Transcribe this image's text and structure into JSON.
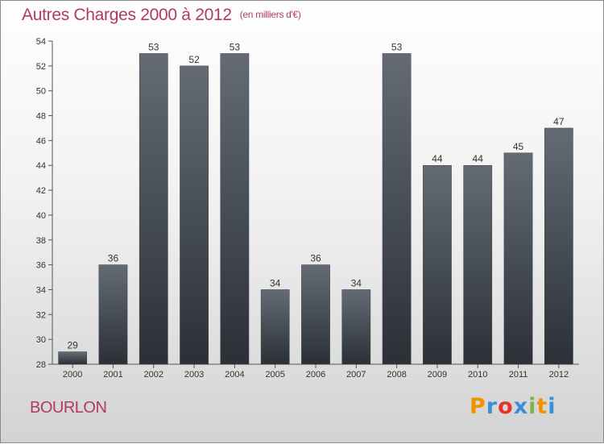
{
  "header": {
    "title": "Autres Charges 2000 à 2012",
    "unit": "(en milliers d'€)"
  },
  "commune": "BOURLON",
  "logo": {
    "text": "Proxiti",
    "letters": [
      "P",
      "r",
      "o",
      "x",
      "i",
      "t",
      "i"
    ],
    "colors": [
      "#f39200",
      "#3a8fd6",
      "#e4332b",
      "#3a8fd6",
      "#7ab648",
      "#f39200",
      "#3a8fd6"
    ]
  },
  "chart_data": {
    "type": "bar",
    "title": "Autres Charges 2000 à 2012",
    "subtitle": "(en milliers d'€)",
    "xlabel": "",
    "ylabel": "",
    "categories": [
      "2000",
      "2001",
      "2002",
      "2003",
      "2004",
      "2005",
      "2006",
      "2007",
      "2008",
      "2009",
      "2010",
      "2011",
      "2012"
    ],
    "values": [
      29,
      36,
      53,
      52,
      53,
      34,
      36,
      34,
      53,
      44,
      44,
      45,
      47
    ],
    "ylim": [
      28,
      54
    ],
    "yticks": [
      28,
      30,
      32,
      34,
      36,
      38,
      40,
      42,
      44,
      46,
      48,
      50,
      52,
      54
    ],
    "grid": false,
    "legend": "none",
    "bar_color": "#4a5058"
  }
}
